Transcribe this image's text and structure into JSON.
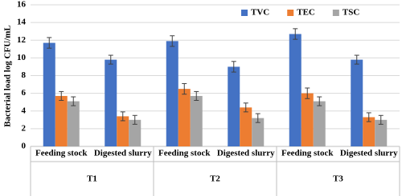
{
  "chart_data": {
    "type": "bar",
    "y_label": "Bacterial load log CFU/mL",
    "categories": [
      "Feeding stock",
      "Digested slurry",
      "Feeding stock",
      "Digested slurry",
      "Feeding stock",
      "Digested slurry"
    ],
    "groups": [
      "T1",
      "T2",
      "T3"
    ],
    "series": [
      {
        "name": "TVC",
        "color": "#4472c4",
        "values": [
          11.7,
          9.8,
          11.9,
          9.0,
          12.7,
          9.8
        ],
        "errors": [
          0.6,
          0.5,
          0.6,
          0.6,
          0.6,
          0.5
        ]
      },
      {
        "name": "TEC",
        "color": "#ed7d31",
        "values": [
          5.7,
          3.4,
          6.5,
          4.4,
          6.0,
          3.3
        ],
        "errors": [
          0.5,
          0.5,
          0.6,
          0.5,
          0.6,
          0.5
        ]
      },
      {
        "name": "TSC",
        "color": "#a5a5a5",
        "values": [
          5.1,
          3.0,
          5.7,
          3.2,
          5.1,
          3.0
        ],
        "errors": [
          0.5,
          0.5,
          0.5,
          0.5,
          0.5,
          0.5
        ]
      }
    ],
    "ylim": [
      0,
      16
    ],
    "yticks": [
      0,
      2,
      4,
      6,
      8,
      10,
      12,
      14,
      16
    ],
    "grid": true,
    "legend": "top-right"
  }
}
